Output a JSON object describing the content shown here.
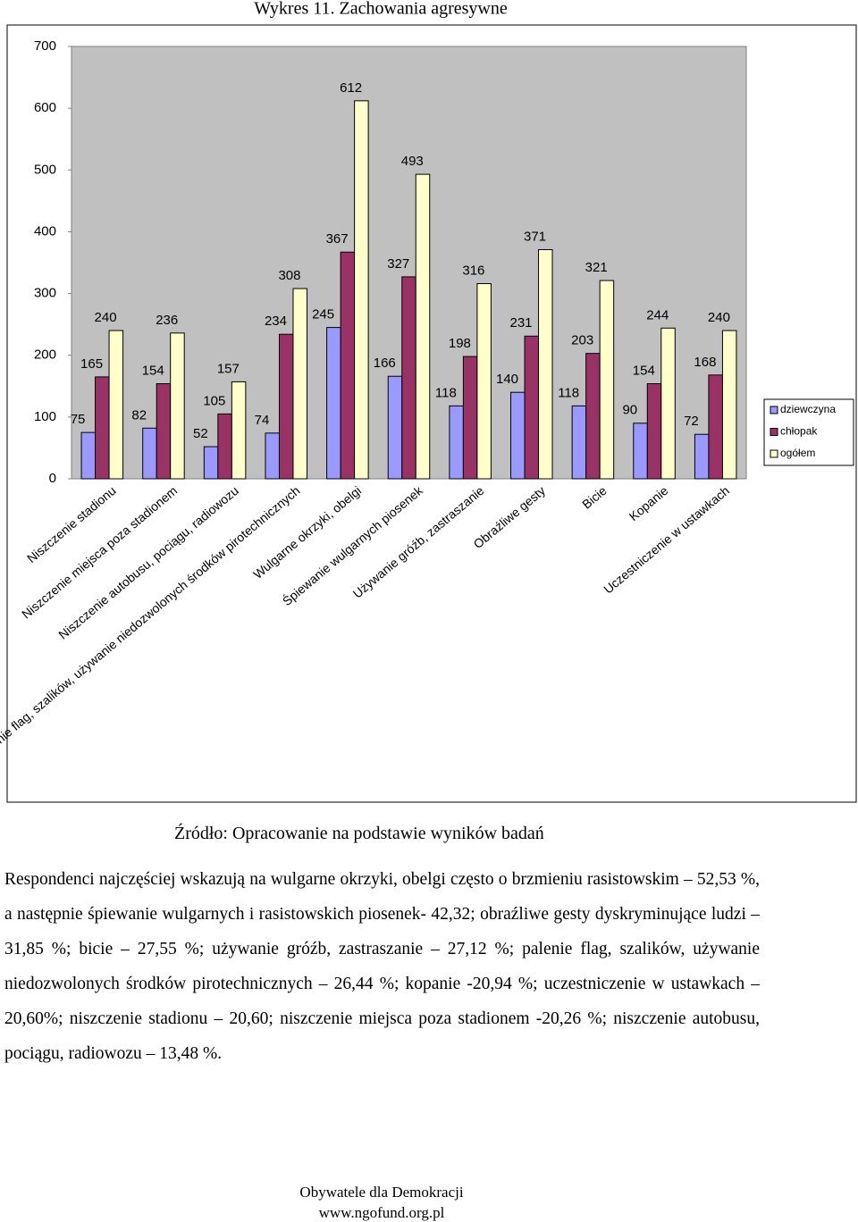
{
  "chart_data": {
    "type": "bar",
    "title": "Wykres 11.  Zachowania agresywne",
    "categories": [
      "Niszczenie stadionu",
      "Niszczenie miejsca poza stadionem",
      "Niszczenie autobusu, pociągu, radiowozu",
      "Palenie flag, szalików, używanie niedozwolonych środków pirotechnicznych",
      "Wulgarne okrzyki, obelgi",
      "Śpiewanie wulgarnych piosenek",
      "Używanie gróźb, zastraszanie",
      "Obraźliwe gesty",
      "Bicie",
      "Kopanie",
      "Uczestniczenie w ustawkach"
    ],
    "series": [
      {
        "name": "dziewczyna",
        "color": "#9999ff",
        "values": [
          75,
          82,
          52,
          74,
          245,
          166,
          118,
          140,
          118,
          90,
          72
        ]
      },
      {
        "name": "chłopak",
        "color": "#993366",
        "values": [
          165,
          154,
          105,
          234,
          367,
          327,
          198,
          231,
          203,
          154,
          168
        ]
      },
      {
        "name": "ogółem",
        "color": "#ffffcc",
        "values": [
          240,
          236,
          157,
          308,
          612,
          493,
          316,
          371,
          321,
          244,
          240
        ]
      }
    ],
    "ylim": [
      0,
      700
    ],
    "yticks": [
      0,
      100,
      200,
      300,
      400,
      500,
      600,
      700
    ],
    "grid": false,
    "legend": "right"
  },
  "source": "Źródło: Opracowanie na podstawie wyników badań",
  "paragraph": "Respondenci najczęściej wskazują na wulgarne okrzyki, obelgi często o brzmieniu rasistowskim – 52,53 %, a następnie śpiewanie wulgarnych i rasistowskich piosenek- 42,32; obraźliwe gesty dyskryminujące ludzi – 31,85 %; bicie – 27,55 %; używanie gróźb, zastraszanie – 27,12 %; palenie flag, szalików, używanie niedozwolonych środków pirotechnicznych – 26,44 %; kopanie -20,94 %; uczestniczenie w ustawkach – 20,60%; niszczenie stadionu – 20,60; niszczenie miejsca poza stadionem -20,26 %; niszczenie autobusu, pociągu, radiowozu – 13,48 %.",
  "footer": [
    "Obywatele dla Demokracji",
    "www.ngofund.org.pl"
  ]
}
